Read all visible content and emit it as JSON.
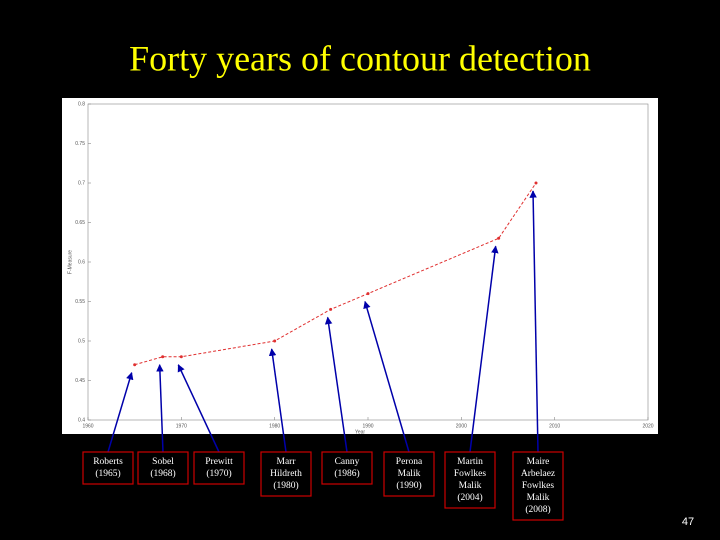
{
  "page_number": "47",
  "chart_data": {
    "type": "line",
    "title": "Forty years of contour detection",
    "x_label": "Year",
    "y_label": "F-Measure",
    "x": [
      1965,
      1968,
      1970,
      1980,
      1986,
      1990,
      2004,
      2008
    ],
    "series": [
      {
        "color": "#e03030",
        "values": [
          0.47,
          0.48,
          0.48,
          0.5,
          0.54,
          0.56,
          0.63,
          0.7
        ]
      }
    ],
    "xlim": [
      1960,
      2020
    ],
    "xticks": [
      1960,
      1970,
      1980,
      1990,
      2000,
      2010,
      2020
    ],
    "ylim": [
      0.4,
      0.8
    ],
    "yticks": [
      0.4,
      0.45,
      0.5,
      0.55,
      0.6,
      0.65,
      0.7,
      0.75,
      0.8
    ],
    "grid": false,
    "annotations": [
      {
        "lines": [
          "Roberts",
          "(1965)"
        ]
      },
      {
        "lines": [
          "Sobel",
          "(1968)"
        ]
      },
      {
        "lines": [
          "Prewitt",
          "(1970)"
        ]
      },
      {
        "lines": [
          "Marr",
          "Hildreth",
          "(1980)"
        ]
      },
      {
        "lines": [
          "Canny",
          "(1986)"
        ]
      },
      {
        "lines": [
          "Perona",
          "Malik",
          "(1990)"
        ]
      },
      {
        "lines": [
          "Martin",
          "Fowlkes",
          "Malik",
          "(2004)"
        ]
      },
      {
        "lines": [
          "Maire",
          "Arbelaez",
          "Fowlkes",
          "Malik",
          "(2008)"
        ]
      }
    ]
  }
}
